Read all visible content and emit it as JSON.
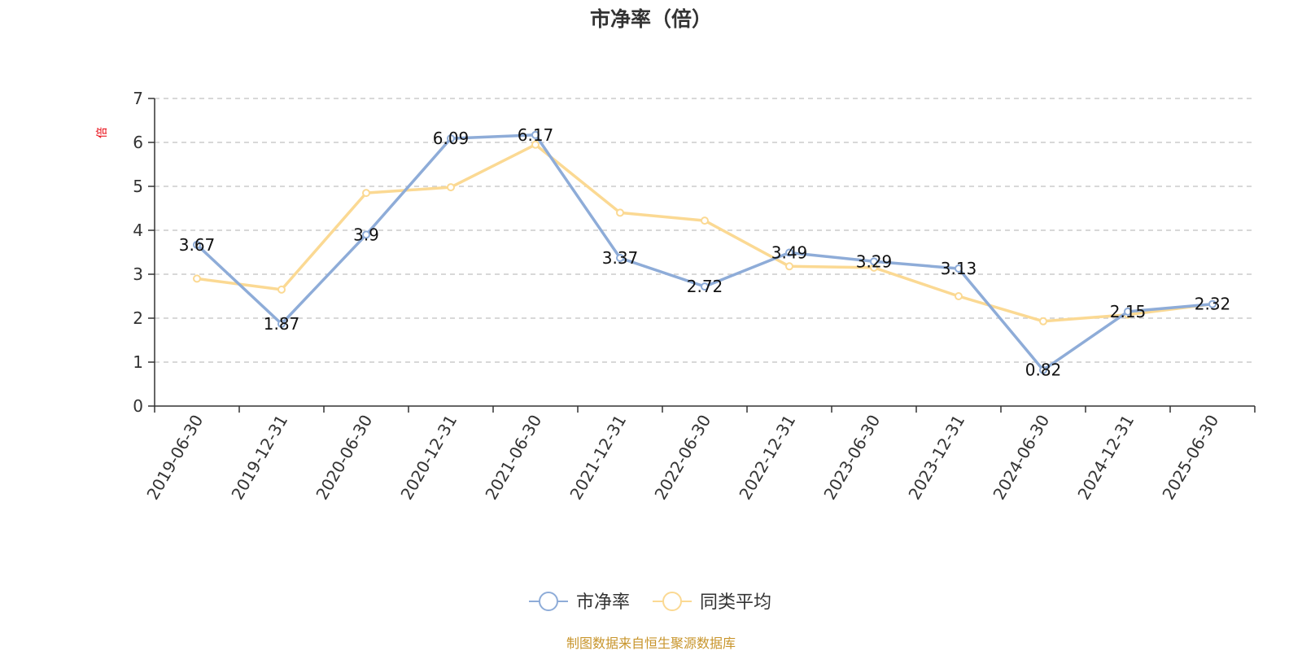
{
  "chart_data": {
    "type": "line",
    "title": "市净率（倍）",
    "ylabel": "倍",
    "ylim": [
      0,
      7
    ],
    "yticks": [
      0,
      1,
      2,
      3,
      4,
      5,
      6,
      7
    ],
    "grid": "horizontal-dashed",
    "categories": [
      "2019-06-30",
      "2019-12-31",
      "2020-06-30",
      "2020-12-31",
      "2021-06-30",
      "2021-12-31",
      "2022-06-30",
      "2022-12-31",
      "2023-06-30",
      "2023-12-31",
      "2024-06-30",
      "2024-12-31",
      "2025-06-30"
    ],
    "series": [
      {
        "name": "市净率",
        "color": "#8eacd8",
        "values": [
          3.67,
          1.87,
          3.9,
          6.09,
          6.17,
          3.37,
          2.72,
          3.49,
          3.29,
          3.13,
          0.82,
          2.15,
          2.32
        ],
        "labels": [
          "3.67",
          "1.87",
          "3.9",
          "6.09",
          "6.17",
          "3.37",
          "2.72",
          "3.49",
          "3.29",
          "3.13",
          "0.82",
          "2.15",
          "2.32"
        ]
      },
      {
        "name": "同类平均",
        "color": "#fbd993",
        "values": [
          2.9,
          2.65,
          4.85,
          4.98,
          5.95,
          4.4,
          4.22,
          3.18,
          3.15,
          2.5,
          1.93,
          2.08,
          2.32
        ]
      }
    ],
    "legend_position": "bottom-center",
    "source": "制图数据来自恒生聚源数据库"
  }
}
